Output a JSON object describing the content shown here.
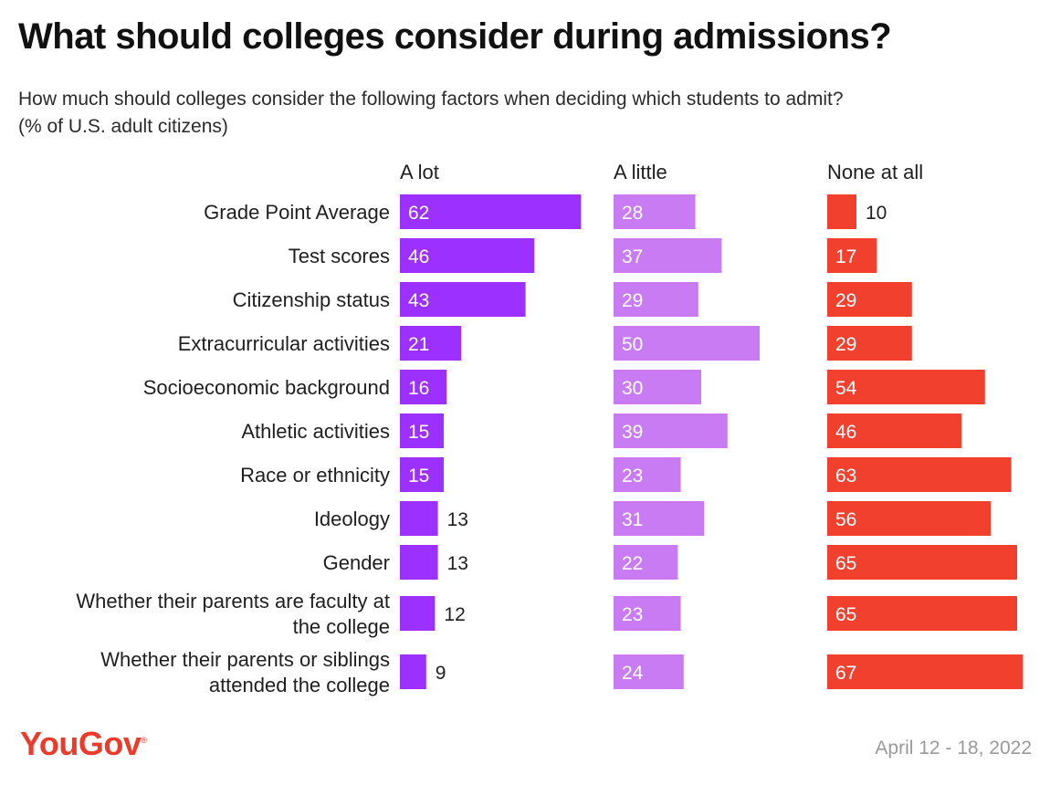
{
  "title": "What should colleges consider during admissions?",
  "subtitle_lines": [
    "How much should colleges consider the following factors when deciding which students to admit?",
    "(% of U.S. adult citizens)"
  ],
  "logo_text": "YouGov",
  "date_text": "April 12 - 18, 2022",
  "colors": {
    "a_lot": "#9b30ff",
    "a_little": "#c87bf2",
    "none_at_all": "#f2402f",
    "logo": "#ec3a2b"
  },
  "chart_data": {
    "type": "bar",
    "orientation": "horizontal",
    "layout": "small-multiples",
    "title": "What should colleges consider during admissions?",
    "subtitle": "How much should colleges consider the following factors when deciding which students to admit? (% of U.S. adult citizens)",
    "categories": [
      [
        "Grade Point Average"
      ],
      [
        "Test scores"
      ],
      [
        "Citizenship status"
      ],
      [
        "Extracurricular activities"
      ],
      [
        "Socioeconomic background"
      ],
      [
        "Athletic activities"
      ],
      [
        "Race or ethnicity"
      ],
      [
        "Ideology"
      ],
      [
        "Gender"
      ],
      [
        "Whether their parents are faculty at",
        "the college"
      ],
      [
        "Whether their parents or siblings",
        "attended the college"
      ]
    ],
    "series": [
      {
        "name": "A lot",
        "values": [
          62,
          46,
          43,
          21,
          16,
          15,
          15,
          13,
          13,
          12,
          9
        ]
      },
      {
        "name": "A little",
        "values": [
          28,
          37,
          29,
          50,
          30,
          39,
          23,
          31,
          22,
          23,
          24
        ]
      },
      {
        "name": "None at all",
        "values": [
          10,
          17,
          29,
          29,
          54,
          46,
          63,
          56,
          65,
          65,
          67
        ]
      }
    ],
    "xlim": [
      0,
      67
    ],
    "grid": false,
    "legend": "column headers above bars"
  }
}
